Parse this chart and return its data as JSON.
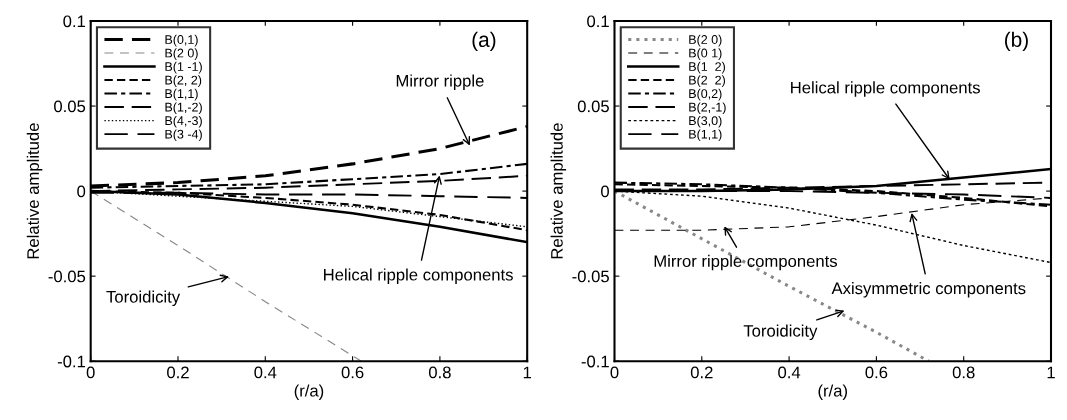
{
  "chart_data": [
    {
      "type": "line",
      "xlabel": "(r/a)",
      "ylabel": "Relative amplitude",
      "xlim": [
        0,
        1
      ],
      "ylim": [
        -0.1,
        0.1
      ],
      "xticks": [
        0,
        0.2,
        0.4,
        0.6,
        0.8,
        1
      ],
      "yticks": [
        -0.1,
        -0.05,
        0,
        0.05,
        0.1
      ],
      "grid": false,
      "legend": "top left",
      "marker": "none",
      "x": [
        0,
        0.2,
        0.4,
        0.6,
        0.8,
        1
      ],
      "series": [
        {
          "name": "B(0,1)",
          "color": "#000000",
          "line_style": "dashed",
          "values": [
            0.003,
            0.005,
            0.009,
            0.016,
            0.025,
            0.038
          ]
        },
        {
          "name": "B(2 0)",
          "color": "#888888",
          "line_style": "dashed",
          "x": [
            0,
            0.2,
            0.4,
            0.62
          ],
          "values": [
            0,
            -0.032,
            -0.065,
            -0.1
          ]
        },
        {
          "name": "B(1 -1)",
          "color": "#000000",
          "line_style": "solid",
          "values": [
            0,
            -0.002,
            -0.007,
            -0.013,
            -0.021,
            -0.03
          ]
        },
        {
          "name": "B(2, 2)",
          "color": "#000000",
          "line_style": "dashed",
          "values": [
            0,
            -0.001,
            -0.004,
            -0.008,
            -0.014,
            -0.023
          ]
        },
        {
          "name": "B(1,1)",
          "color": "#000000",
          "line_style": "dashed",
          "values": [
            0.002,
            0.003,
            0.004,
            0.007,
            0.01,
            0.016
          ]
        },
        {
          "name": "B(1,-2)",
          "color": "#000000",
          "line_style": "dashed",
          "values": [
            0,
            0.001,
            0.002,
            0.004,
            0.006,
            0.009
          ]
        },
        {
          "name": "B(4,-3)",
          "color": "#000000",
          "line_style": "dotted",
          "values": [
            0,
            -0.003,
            -0.006,
            -0.009,
            -0.015,
            -0.021
          ]
        },
        {
          "name": "B(3 -4)",
          "color": "#000000",
          "line_style": "dashed",
          "values": [
            -0.001,
            -0.001,
            -0.002,
            -0.002,
            -0.003,
            -0.004
          ]
        }
      ],
      "annotations": [
        "(a)",
        {
          "text": "Mirror ripple",
          "x": 0.87,
          "y": 0.026
        },
        {
          "text": "Helical ripple components",
          "x": 0.8,
          "y": 0.01
        },
        {
          "text": "Toroidicity",
          "x": 0.32,
          "y": -0.05
        }
      ]
    },
    {
      "type": "line",
      "xlabel": "(r/a)",
      "ylabel": "Relative amplitude",
      "xlim": [
        0,
        1
      ],
      "ylim": [
        -0.1,
        0.1
      ],
      "xticks": [
        0,
        0.2,
        0.4,
        0.6,
        0.8,
        1
      ],
      "yticks": [
        -0.1,
        -0.05,
        0,
        0.05,
        0.1
      ],
      "grid": false,
      "legend": "top left",
      "marker": "none",
      "x": [
        0,
        0.2,
        0.4,
        0.6,
        0.8,
        1
      ],
      "series": [
        {
          "name": "B(2 0)",
          "color": "#888888",
          "line_style": "dotted",
          "x": [
            0,
            0.2,
            0.4,
            0.6,
            0.72
          ],
          "values": [
            0,
            -0.028,
            -0.056,
            -0.083,
            -0.1
          ]
        },
        {
          "name": "B(0 1)",
          "color": "#000000",
          "line_style": "dashed",
          "values": [
            -0.023,
            -0.023,
            -0.021,
            -0.015,
            -0.008,
            -0.004
          ]
        },
        {
          "name": "B(1  2)",
          "color": "#000000",
          "line_style": "solid",
          "values": [
            0,
            0,
            0.001,
            0.003,
            0.008,
            0.013
          ]
        },
        {
          "name": "B(2  2)",
          "color": "#000000",
          "line_style": "dashed",
          "values": [
            0.004,
            0.003,
            0.002,
            0,
            -0.004,
            -0.009
          ]
        },
        {
          "name": "B(0,2)",
          "color": "#000000",
          "line_style": "dashed",
          "values": [
            0.005,
            0.004,
            0.002,
            -0.001,
            -0.005,
            -0.008
          ]
        },
        {
          "name": "B(2,-1)",
          "color": "#000000",
          "line_style": "dashed",
          "values": [
            0.001,
            0.001,
            0.002,
            0.003,
            0.004,
            0.005
          ]
        },
        {
          "name": "B(3,0)",
          "color": "#000000",
          "line_style": "dashed",
          "values": [
            0,
            -0.003,
            -0.01,
            -0.02,
            -0.032,
            -0.042
          ]
        },
        {
          "name": "B(1,1)",
          "color": "#000000",
          "line_style": "dashed",
          "values": [
            0,
            0,
            0,
            -0.001,
            -0.002,
            -0.004
          ]
        }
      ],
      "annotations": [
        "(b)",
        {
          "text": "Helical ripple components",
          "x": 0.77,
          "y": 0.006
        },
        {
          "text": "Mirror ripple components",
          "x": 0.25,
          "y": -0.02
        },
        {
          "text": "Axisymmetric components",
          "x": 0.68,
          "y": -0.012
        },
        {
          "text": "Toroidicity",
          "x": 0.53,
          "y": -0.07
        }
      ]
    }
  ]
}
